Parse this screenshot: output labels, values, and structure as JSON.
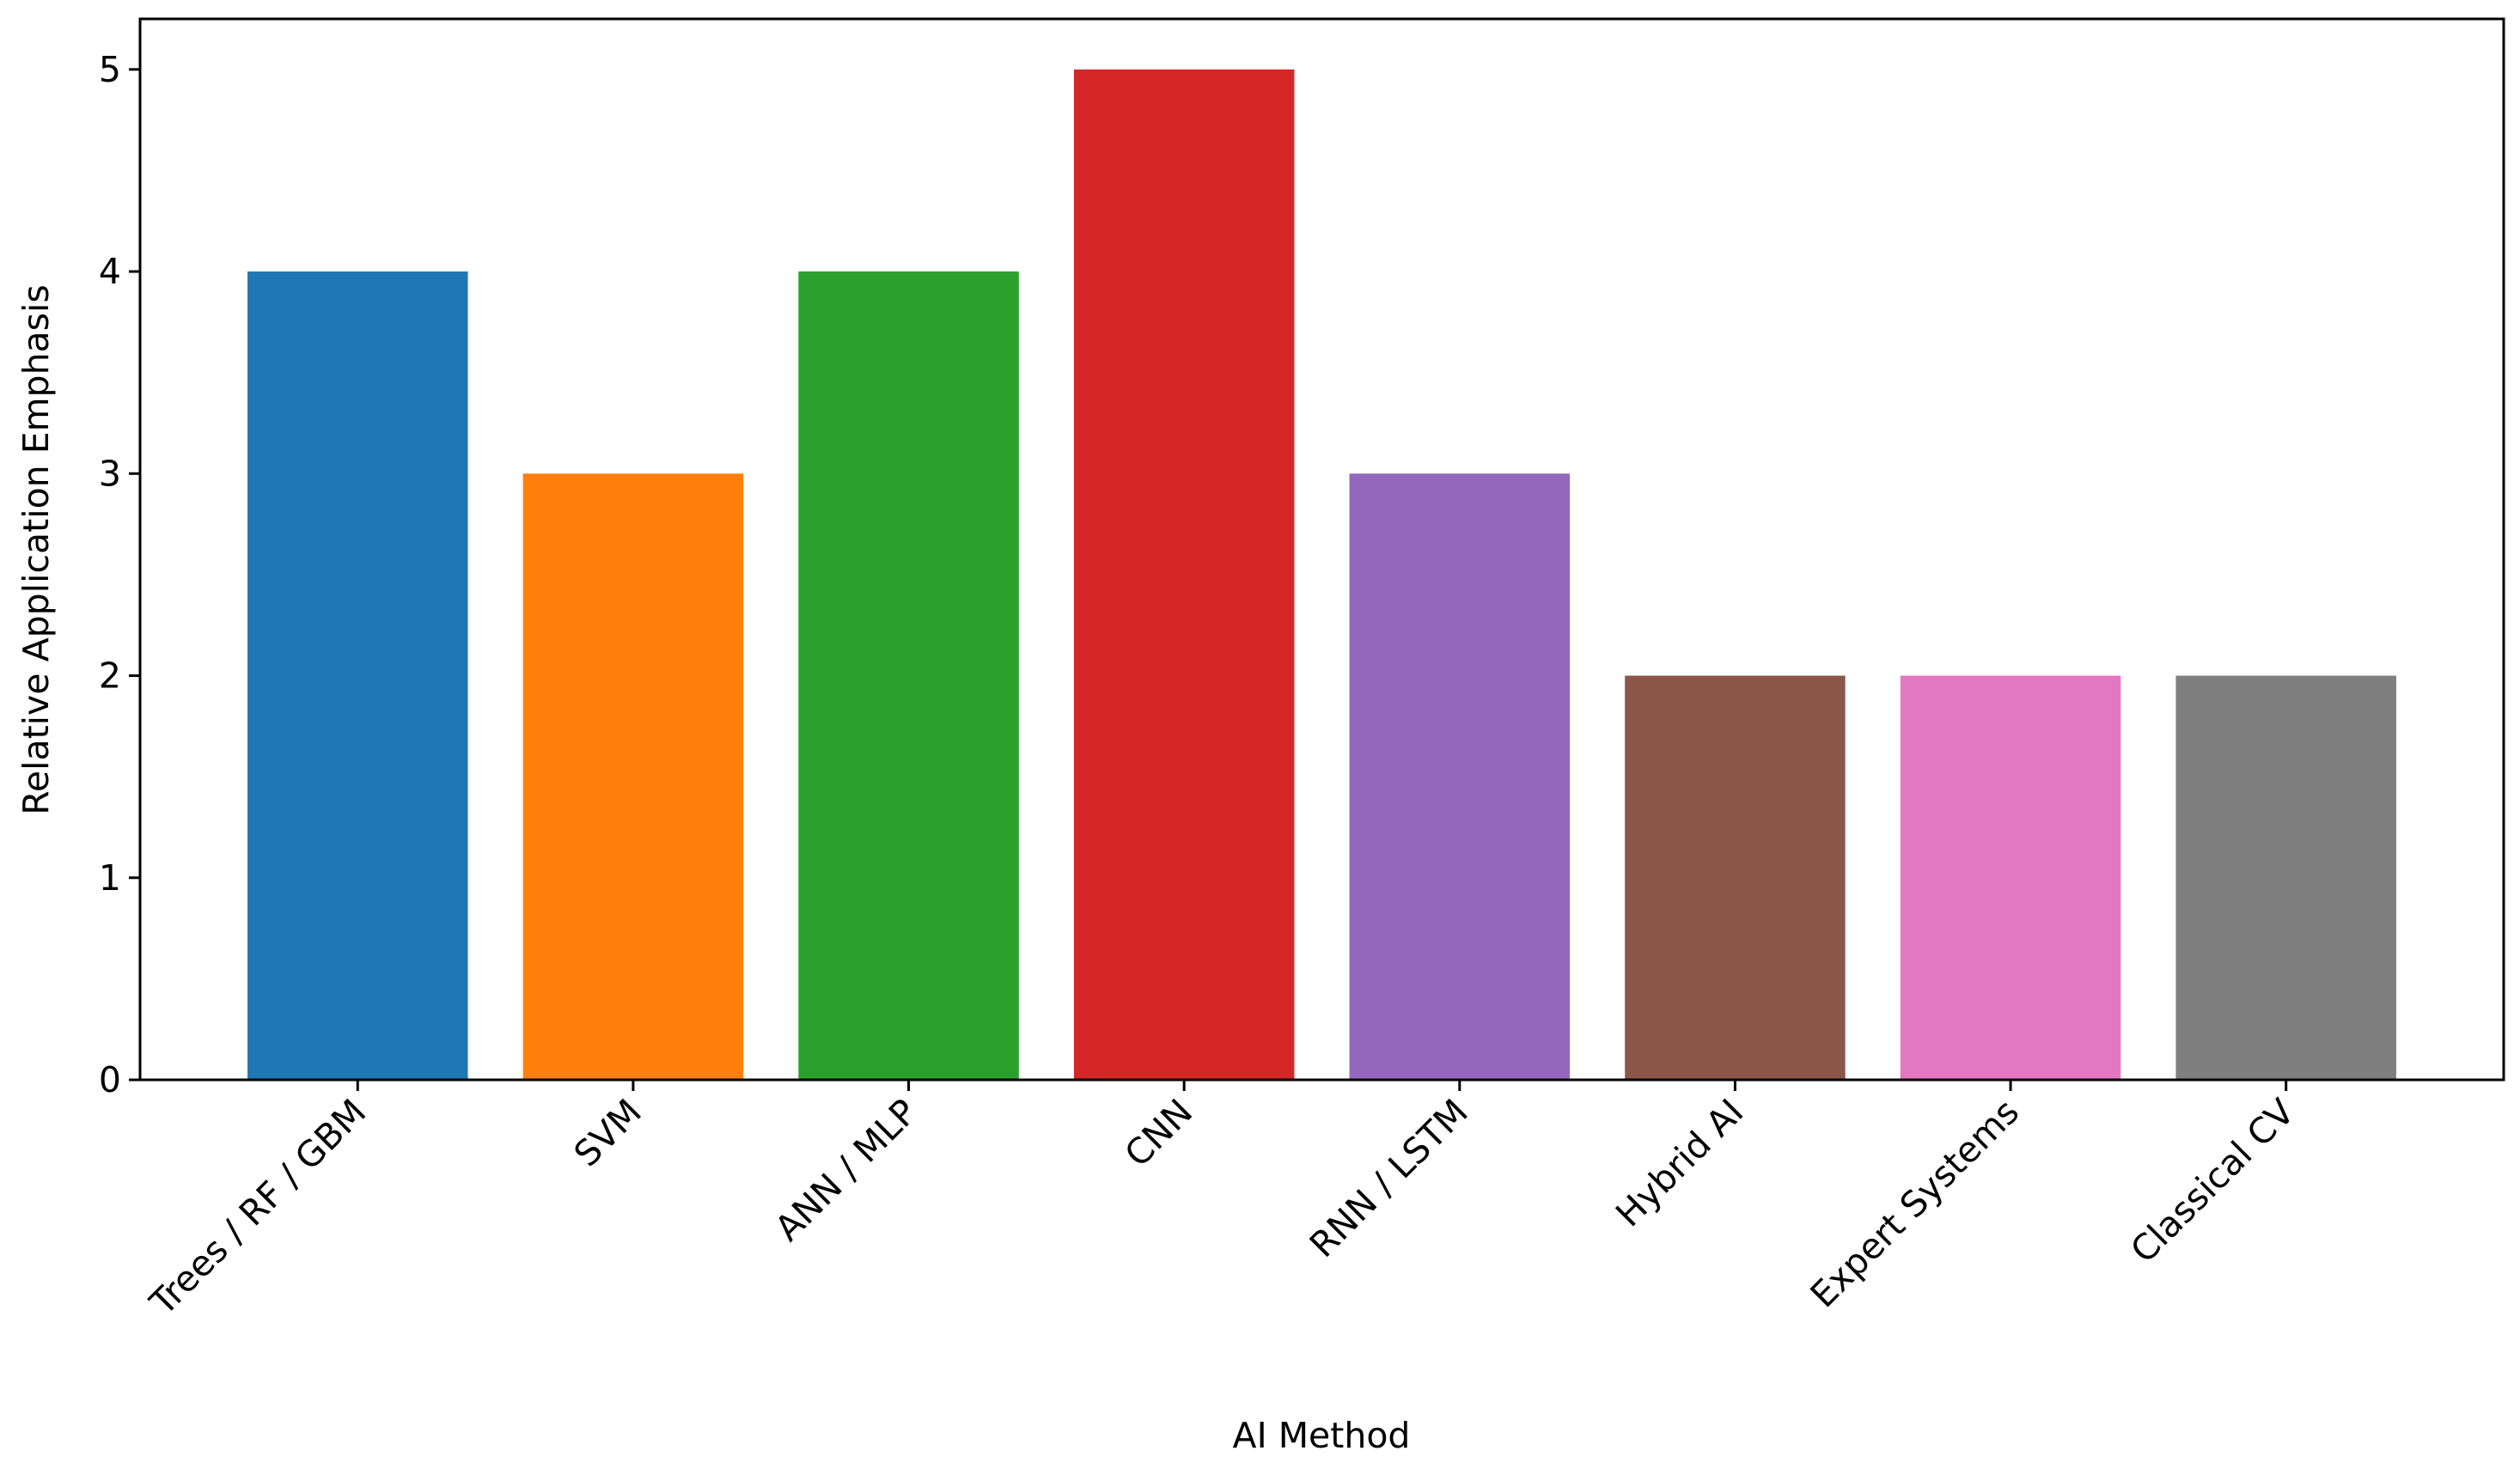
{
  "chart_data": {
    "type": "bar",
    "xlabel": "AI Method",
    "ylabel": "Relative Application Emphasis",
    "categories": [
      "Trees / RF / GBM",
      "SVM",
      "ANN / MLP",
      "CNN",
      "RNN / LSTM",
      "Hybrid AI",
      "Expert Systems",
      "Classical CV"
    ],
    "values": [
      4,
      3,
      4,
      5,
      3,
      2,
      2,
      2
    ],
    "colors": [
      "#1f77b4",
      "#ff7f0e",
      "#2ca02c",
      "#d62728",
      "#9467bd",
      "#8c564b",
      "#e377c2",
      "#7f7f7f"
    ],
    "ylim": [
      0,
      5.25
    ],
    "yticks": [
      0,
      1,
      2,
      3,
      4,
      5
    ],
    "grid": false
  }
}
